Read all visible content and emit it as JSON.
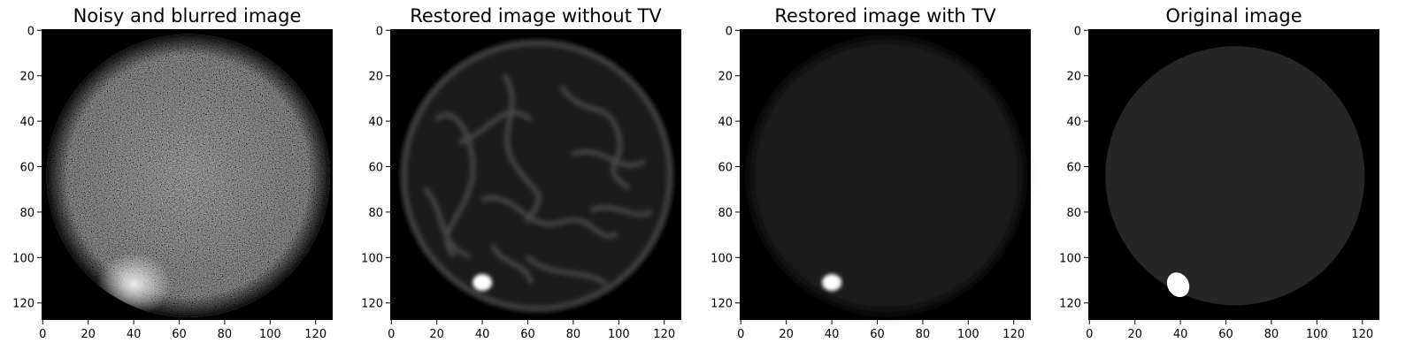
{
  "chart_data": [
    {
      "type": "heatmap",
      "title": "Noisy and blurred image",
      "image_size": [
        128,
        128
      ],
      "xlim": [
        0,
        127
      ],
      "ylim": [
        127,
        0
      ],
      "xticks": [
        0,
        20,
        40,
        60,
        80,
        100,
        120
      ],
      "yticks": [
        0,
        20,
        40,
        60,
        80,
        100,
        120
      ],
      "colormap": "gray",
      "content": {
        "background": "black",
        "disk": {
          "center": [
            64,
            64
          ],
          "radius": 60,
          "brightness": "noisy medium gray"
        },
        "blob": {
          "center": [
            40,
            112
          ],
          "brightness": "bright"
        }
      }
    },
    {
      "type": "heatmap",
      "title": "Restored image without TV",
      "image_size": [
        128,
        128
      ],
      "xlim": [
        0,
        127
      ],
      "ylim": [
        127,
        0
      ],
      "xticks": [
        0,
        20,
        40,
        60,
        80,
        100,
        120
      ],
      "yticks": [
        0,
        20,
        40,
        60,
        80,
        100,
        120
      ],
      "colormap": "gray",
      "content": {
        "background": "black",
        "disk": {
          "center": [
            64,
            64
          ],
          "radius": 60,
          "brightness": "dark gray with blurry ring artifacts"
        },
        "blob": {
          "center": [
            40,
            111
          ],
          "brightness": "white"
        }
      }
    },
    {
      "type": "heatmap",
      "title": "Restored image with TV",
      "image_size": [
        128,
        128
      ],
      "xlim": [
        0,
        127
      ],
      "ylim": [
        127,
        0
      ],
      "xticks": [
        0,
        20,
        40,
        60,
        80,
        100,
        120
      ],
      "yticks": [
        0,
        20,
        40,
        60,
        80,
        100,
        120
      ],
      "colormap": "gray",
      "content": {
        "background": "black",
        "disk": {
          "center": [
            64,
            64
          ],
          "radius": 60,
          "brightness": "smooth dark gray"
        },
        "blob": {
          "center": [
            40,
            111
          ],
          "brightness": "white"
        }
      }
    },
    {
      "type": "heatmap",
      "title": "Original image",
      "image_size": [
        128,
        128
      ],
      "xlim": [
        0,
        127
      ],
      "ylim": [
        127,
        0
      ],
      "xticks": [
        0,
        20,
        40,
        60,
        80,
        100,
        120
      ],
      "yticks": [
        0,
        20,
        40,
        60,
        80,
        100,
        120
      ],
      "colormap": "gray",
      "content": {
        "background": "black",
        "disk": {
          "center": [
            64,
            64
          ],
          "radius": 57,
          "brightness": "uniform dark gray"
        },
        "blob": {
          "center": [
            39,
            112
          ],
          "brightness": "white"
        }
      }
    }
  ]
}
